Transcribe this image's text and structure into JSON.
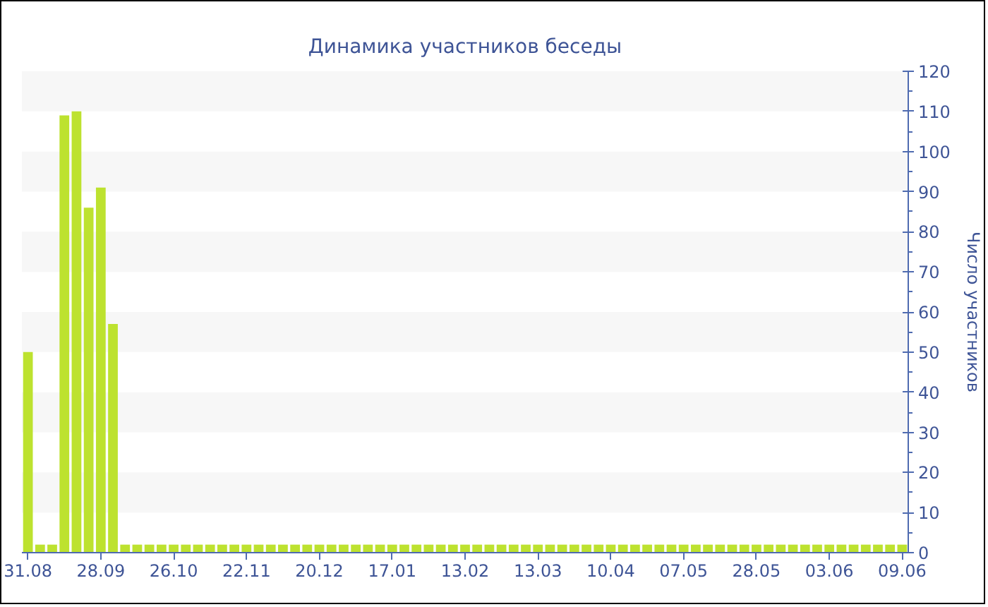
{
  "chart_data": {
    "type": "bar",
    "title": "Динамика участников беседы",
    "ylabel": "Число участников",
    "categories": [
      "31.08",
      null,
      null,
      null,
      null,
      null,
      "28.09",
      null,
      null,
      null,
      null,
      null,
      "26.10",
      null,
      null,
      null,
      null,
      null,
      "22.11",
      null,
      null,
      null,
      null,
      null,
      "20.12",
      null,
      null,
      null,
      null,
      null,
      "17.01",
      null,
      null,
      null,
      null,
      null,
      "13.02",
      null,
      null,
      null,
      null,
      null,
      "13.03",
      null,
      null,
      null,
      null,
      null,
      "10.04",
      null,
      null,
      null,
      null,
      null,
      "07.05",
      null,
      null,
      null,
      null,
      null,
      "28.05",
      null,
      null,
      null,
      null,
      null,
      "03.06",
      null,
      null,
      null,
      null,
      null,
      "09.06"
    ],
    "values": [
      50,
      2,
      2,
      109,
      110,
      86,
      91,
      57,
      2,
      2,
      2,
      2,
      2,
      2,
      2,
      2,
      2,
      2,
      2,
      2,
      2,
      2,
      2,
      2,
      2,
      2,
      2,
      2,
      2,
      2,
      2,
      2,
      2,
      2,
      2,
      2,
      2,
      2,
      2,
      2,
      2,
      2,
      2,
      2,
      2,
      2,
      2,
      2,
      2,
      2,
      2,
      2,
      2,
      2,
      2,
      2,
      2,
      2,
      2,
      2,
      2,
      2,
      2,
      2,
      2,
      2,
      2,
      2,
      2,
      2,
      2,
      2,
      2
    ],
    "color": "#bde22f",
    "ylim": [
      0,
      120
    ],
    "yticks": [
      0,
      {
        "value": 5,
        "label": null
      },
      10,
      {
        "value": 15,
        "label": null
      },
      20,
      {
        "value": 25,
        "label": null
      },
      30,
      {
        "value": 35,
        "label": null
      },
      40,
      {
        "value": 45,
        "label": null
      },
      50,
      {
        "value": 55,
        "label": null
      },
      60,
      {
        "value": 65,
        "label": null
      },
      70,
      {
        "value": 75,
        "label": null
      },
      80,
      {
        "value": 85,
        "label": null
      },
      90,
      {
        "value": 95,
        "label": null
      },
      100,
      {
        "value": 105,
        "label": null
      },
      110,
      {
        "value": 115,
        "label": null
      },
      120
    ],
    "bands": [
      {
        "axis": "y",
        "from": 10,
        "to": 20,
        "color": "#f7f7f7"
      },
      {
        "axis": "y",
        "from": 30,
        "to": 40,
        "color": "#f7f7f7"
      },
      {
        "axis": "y",
        "from": 50,
        "to": 60,
        "color": "#f7f7f7"
      },
      {
        "axis": "y",
        "from": 70,
        "to": 80,
        "color": "#f7f7f7"
      },
      {
        "axis": "y",
        "from": 90,
        "to": 100,
        "color": "#f7f7f7"
      },
      {
        "axis": "y",
        "from": 110,
        "to": 120,
        "color": "#f7f7f7"
      }
    ],
    "grid": false
  }
}
